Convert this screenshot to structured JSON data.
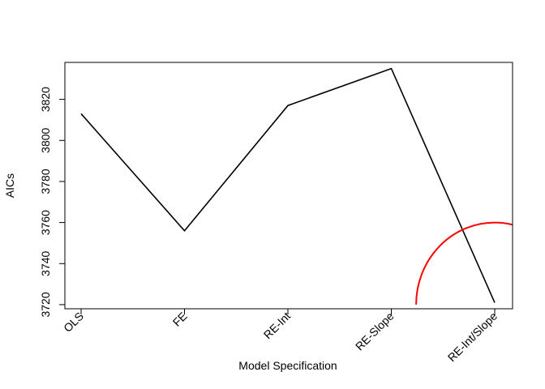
{
  "chart_data": {
    "type": "line",
    "categories": [
      "OLS",
      "FE",
      "RE-Int",
      "RE-Slope",
      "RE-Int/Slope"
    ],
    "series": [
      {
        "values": [
          3813,
          3756,
          3817,
          3835,
          3721
        ],
        "color": "#000000"
      }
    ],
    "xlabel": "Model Specification",
    "ylabel": "AICs",
    "ylim": [
      3718,
      3838
    ],
    "yticks": [
      3720,
      3740,
      3760,
      3780,
      3800,
      3820
    ],
    "grid": false,
    "overlay": {
      "shape": "semicircle-arc",
      "color": "#ff0000",
      "center": {
        "category_index": 4,
        "value": 3720
      },
      "radius_x_categories": 0.76,
      "radius_y_value": 40
    }
  }
}
